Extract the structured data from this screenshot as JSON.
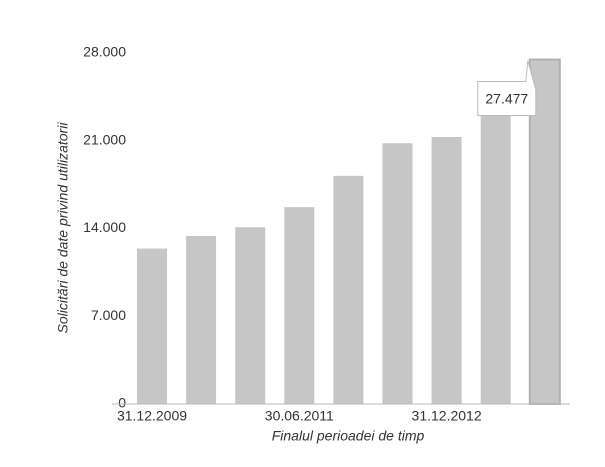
{
  "chart_data": {
    "type": "bar",
    "x_label": "Finalul perioadei de timp",
    "y_label": "Solicitări de date privind utilizatorii",
    "categories": [
      "31.12.2009",
      null,
      null,
      "30.06.2011",
      null,
      null,
      "31.12.2012",
      null,
      null
    ],
    "values": [
      12400,
      13400,
      14100,
      15700,
      18200,
      20800,
      21300,
      23200,
      27477
    ],
    "value_labels": [
      null,
      null,
      null,
      null,
      null,
      null,
      null,
      null,
      "27.477"
    ],
    "color": "#c6c6c6",
    "ylim": [
      0,
      28000
    ],
    "yticks": [
      {
        "value": 0,
        "label": "0"
      },
      {
        "value": 7000,
        "label": "7.000"
      },
      {
        "value": 14000,
        "label": "14.000"
      },
      {
        "value": 21000,
        "label": "21.000"
      },
      {
        "value": 28000,
        "label": "28.000"
      }
    ]
  }
}
